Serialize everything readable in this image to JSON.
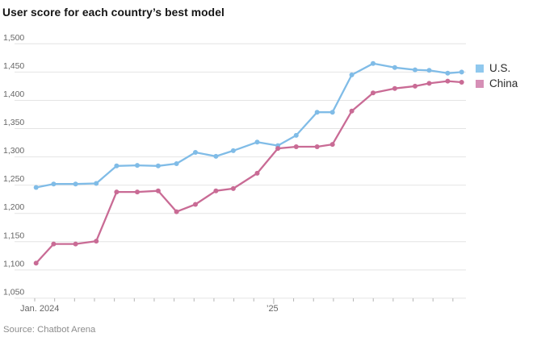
{
  "title": "User score for each country’s best model",
  "source": "Source: Chatbot Arena",
  "legend": {
    "items": [
      {
        "label": "U.S.",
        "swatch_color": "#8fc8ee"
      },
      {
        "label": "China",
        "swatch_color": "#d68fb6"
      }
    ]
  },
  "x_axis": {
    "left_label": "Jan. 2024",
    "year_label": "’25",
    "tick_count": 22,
    "year_tick_index": 12
  },
  "y_axis": {
    "min": 1050,
    "max": 1500,
    "step": 50,
    "tick_labels": [
      "1,500",
      "1,450",
      "1,400",
      "1,350",
      "1,300",
      "1,250",
      "1,200",
      "1,150",
      "1,100",
      "1,050"
    ]
  },
  "chart_data": {
    "type": "line",
    "title": "User score for each country’s best model",
    "xlabel_start": "Jan. 2024",
    "xlabel_year2": "’25",
    "ylabel": "",
    "ylim": [
      1050,
      1500
    ],
    "grid": "horizontal",
    "legend_position": "right",
    "x_unit": "months_since_jan_2024",
    "x": [
      0.07,
      0.95,
      2.05,
      3.09,
      4.11,
      5.15,
      6.2,
      7.12,
      8.07,
      9.1,
      9.97,
      11.17,
      12.21,
      13.13,
      14.18,
      14.95,
      15.92,
      16.99,
      18.08,
      19.1,
      19.81,
      20.74,
      21.44
    ],
    "series": [
      {
        "name": "U.S.",
        "color": "#80bce7",
        "values": [
          1246,
          1252,
          1252,
          1253,
          1284,
          1285,
          1284,
          1288,
          1308,
          1301,
          1311,
          1326,
          1320,
          1338,
          1379,
          1379,
          1445,
          1465,
          1458,
          1454,
          1453,
          1448,
          1450
        ]
      },
      {
        "name": "China",
        "color": "#c96b95",
        "values": [
          1112,
          1146,
          1146,
          1151,
          1238,
          1238,
          1240,
          1203,
          1216,
          1240,
          1244,
          1271,
          1315,
          1318,
          1318,
          1322,
          1381,
          1413,
          1421,
          1425,
          1430,
          1434,
          1432
        ]
      }
    ]
  }
}
